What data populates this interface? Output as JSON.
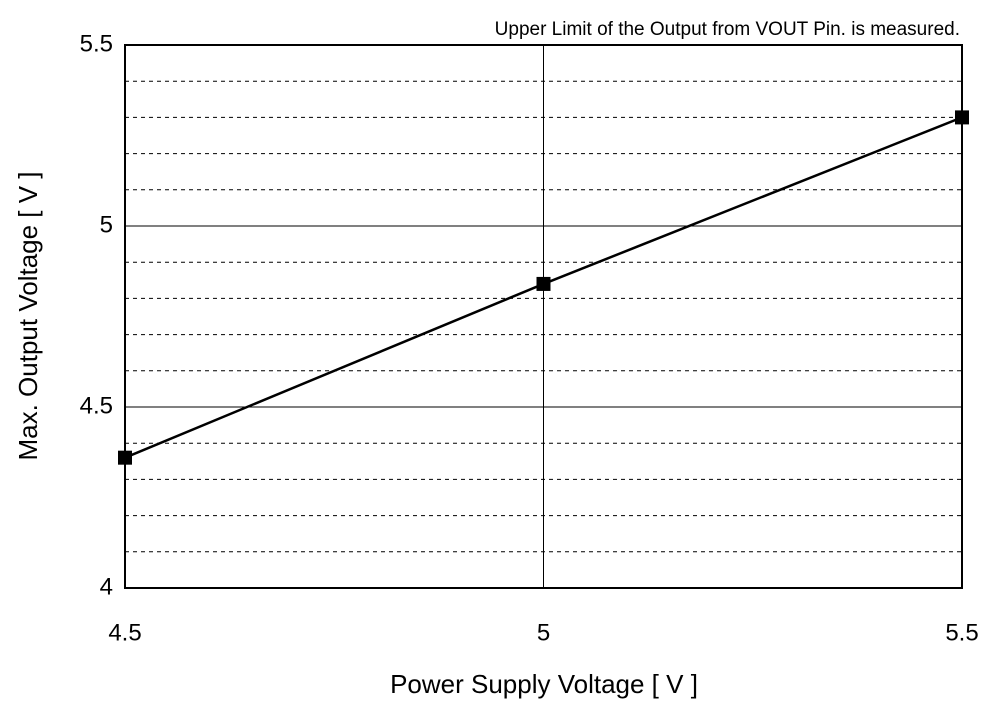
{
  "chart_data": {
    "type": "line",
    "annotation": "Upper Limit of the Output from VOUT Pin. is measured.",
    "xlabel": "Power Supply Voltage  [ V ]",
    "ylabel": "Max. Output Voltage  [ V ]",
    "x": [
      4.5,
      5,
      5.5
    ],
    "series": [
      {
        "color": "#000000",
        "values": [
          4.36,
          4.84,
          5.3
        ]
      }
    ],
    "xlim": [
      4.5,
      5.5
    ],
    "xticks": [
      4.5,
      5,
      5.5
    ],
    "ylim": [
      4,
      5.5
    ],
    "yticks": [
      4,
      4.5,
      5,
      5.5
    ],
    "yminorticks": [
      4.1,
      4.2,
      4.3,
      4.4,
      4.6,
      4.7,
      4.8,
      4.9,
      5.1,
      5.2,
      5.3,
      5.4
    ],
    "grid": true
  }
}
